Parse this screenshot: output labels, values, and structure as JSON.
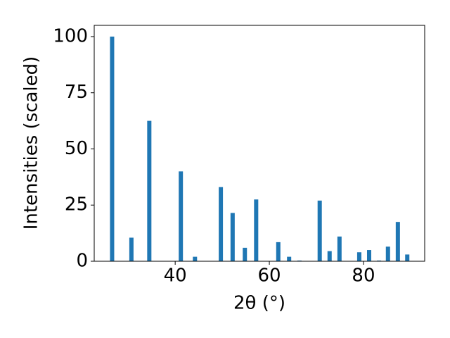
{
  "chart_data": {
    "type": "bar",
    "x_label": "2θ (°)",
    "y_label": "Intensities (scaled)",
    "x": [
      26.6,
      30.7,
      34.5,
      41.2,
      44.2,
      49.7,
      52.2,
      54.8,
      57.2,
      61.9,
      64.2,
      66.4,
      70.7,
      72.8,
      74.9,
      79.1,
      81.2,
      83.3,
      85.2,
      87.3,
      89.3
    ],
    "values": [
      100,
      10.5,
      62.5,
      40,
      2,
      33,
      21.5,
      6,
      27.5,
      8.5,
      2,
      0.3,
      27,
      4.5,
      11,
      4,
      5,
      0.3,
      6.5,
      17.5,
      3
    ],
    "color": "#1f77b4",
    "xlim": [
      22.8,
      93.0
    ],
    "xticks": [
      40,
      60,
      80
    ],
    "ylim": [
      0,
      105
    ],
    "yticks": [
      0,
      25,
      50,
      75,
      100
    ],
    "grid": false
  }
}
